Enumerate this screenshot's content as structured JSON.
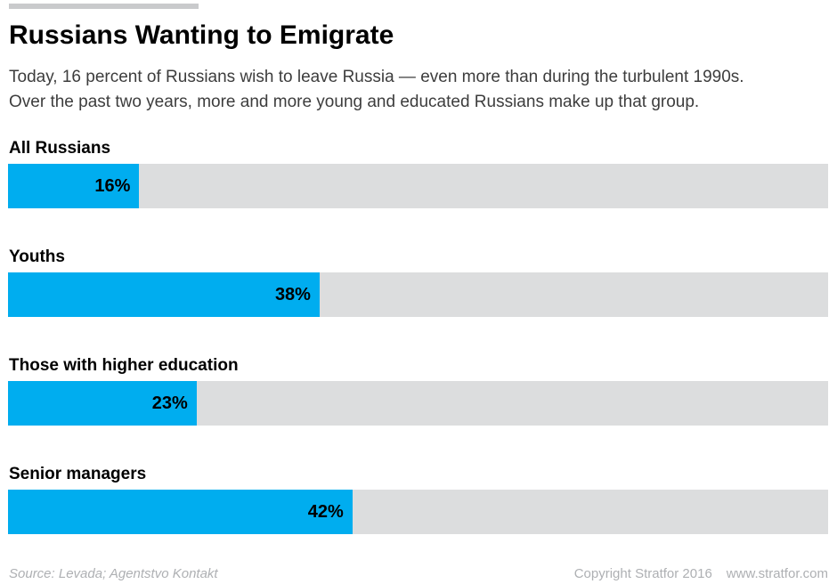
{
  "header": {
    "title": "Russians Wanting to Emigrate",
    "subtitle_line1": "Today, 16 percent of Russians wish to leave Russia — even more than during the turbulent 1990s.",
    "subtitle_line2": "Over the past two years, more and more young and educated Russians make up that group."
  },
  "chart_data": {
    "type": "bar",
    "orientation": "horizontal",
    "title": "Russians Wanting to Emigrate",
    "xlabel": "",
    "ylabel": "",
    "xlim": [
      0,
      100
    ],
    "grid": false,
    "legend": false,
    "bar_color": "#00adef",
    "track_color": "#dcddde",
    "categories": [
      "All Russians",
      "Youths",
      "Those with higher education",
      "Senior managers"
    ],
    "values": [
      16,
      38,
      23,
      42
    ],
    "items": [
      {
        "label": "All Russians",
        "value": 16,
        "value_label": "16%"
      },
      {
        "label": "Youths",
        "value": 38,
        "value_label": "38%"
      },
      {
        "label": "Those with higher education",
        "value": 23,
        "value_label": "23%"
      },
      {
        "label": "Senior managers",
        "value": 42,
        "value_label": "42%"
      }
    ]
  },
  "footer": {
    "source": "Source: Levada; Agentstvo Kontakt",
    "copyright": "Copyright Stratfor 2016",
    "website": "www.stratfor.com"
  }
}
